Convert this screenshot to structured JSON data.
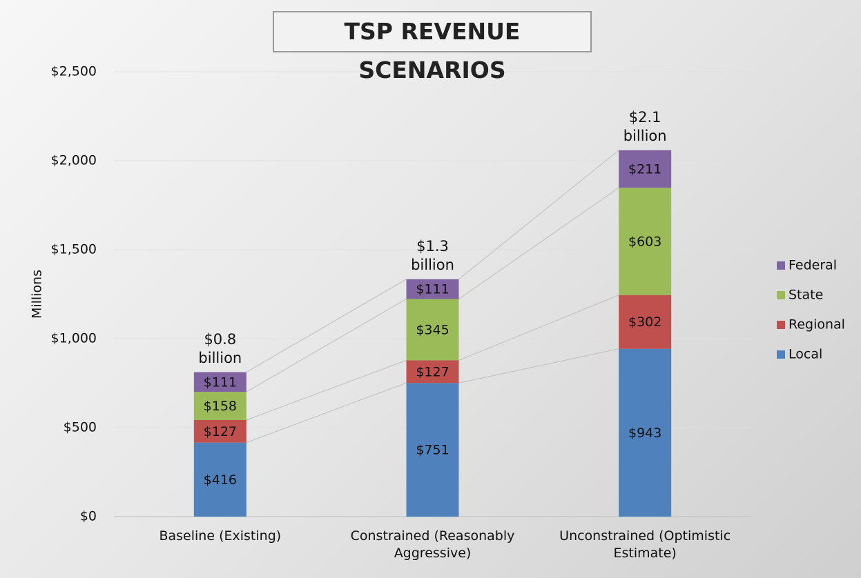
{
  "chart_data": {
    "type": "stacked_bar",
    "title": "TSP REVENUE SCENARIOS",
    "y_label": "Millions",
    "categories": [
      "Baseline (Existing)",
      "Constrained (Reasonably Aggressive)",
      "Unconstrained (Optimistic Estimate)"
    ],
    "series": [
      {
        "name": "Local",
        "color": "#4f81bd",
        "values": [
          416,
          751,
          943
        ],
        "value_labels": [
          "$416",
          "$751",
          "$943"
        ]
      },
      {
        "name": "Regional",
        "color": "#c0504d",
        "values": [
          127,
          127,
          302
        ],
        "value_labels": [
          "$127",
          "$127",
          "$302"
        ]
      },
      {
        "name": "State",
        "color": "#9bbb59",
        "values": [
          158,
          345,
          603
        ],
        "value_labels": [
          "$158",
          "$345",
          "$603"
        ]
      },
      {
        "name": "Federal",
        "color": "#8064a2",
        "values": [
          111,
          111,
          211
        ],
        "value_labels": [
          "$111",
          "$111",
          "$211"
        ]
      }
    ],
    "annotations": [
      "$0.8 billion",
      "$1.3 billion",
      "$2.1 billion"
    ],
    "ylim": [
      0,
      2500
    ],
    "yticks": [
      {
        "value": 0,
        "label": "$0"
      },
      {
        "value": 500,
        "label": "$500"
      },
      {
        "value": 1000,
        "label": "$1,000"
      },
      {
        "value": 1500,
        "label": "$1,500"
      },
      {
        "value": 2000,
        "label": "$2,000"
      },
      {
        "value": 2500,
        "label": "$2,500"
      }
    ],
    "grid": true,
    "legend": "right"
  }
}
